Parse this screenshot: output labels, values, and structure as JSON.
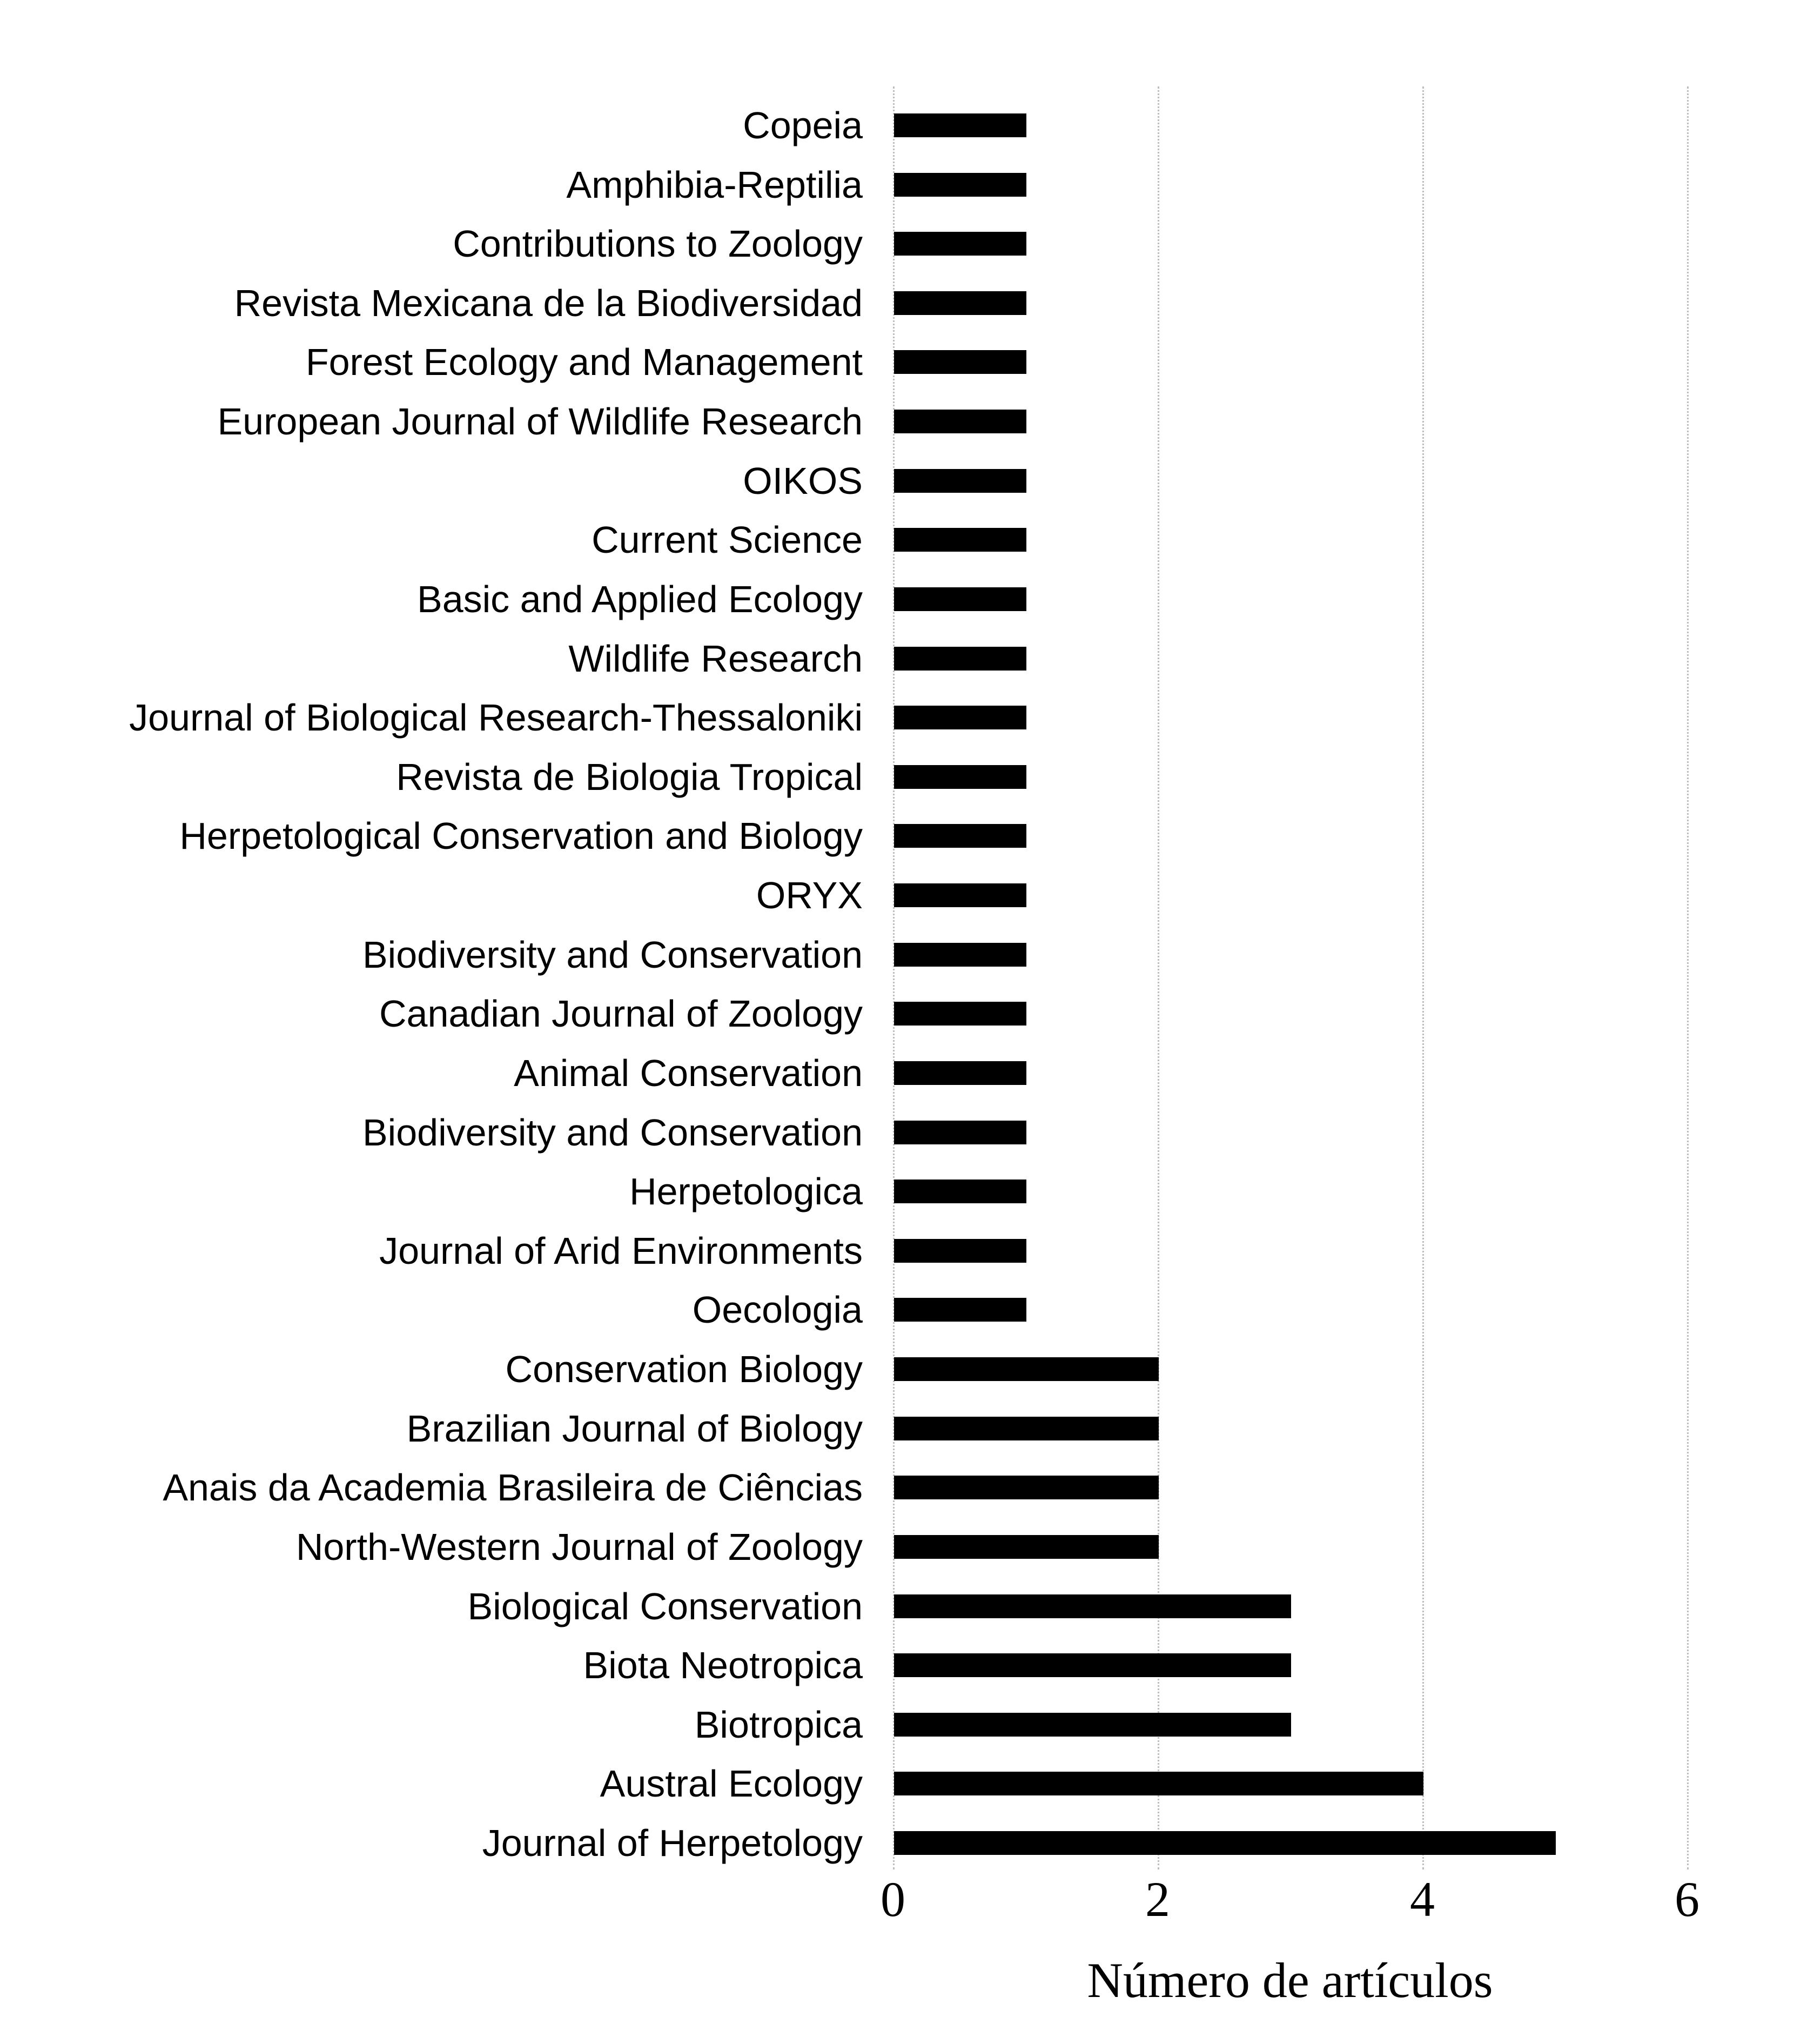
{
  "figure": {
    "background": "#ffffff"
  },
  "chart_data": {
    "type": "bar",
    "orientation": "horizontal",
    "title": "",
    "xlabel": "Número de artículos",
    "ylabel": "",
    "xlim": [
      0,
      6
    ],
    "xticks": [
      0,
      2,
      4,
      6
    ],
    "grid": "vertical-dotted",
    "gridline_color": "#bdbdbd",
    "bar_color": "#000000",
    "legend": "none",
    "categories": [
      "Copeia",
      "Amphibia-Reptilia",
      "Contributions to Zoology",
      "Revista Mexicana de la Biodiversidad",
      "Forest Ecology and Management",
      "European Journal of Wildlife Research",
      "OIKOS",
      "Current Science",
      "Basic and Applied Ecology",
      "Wildlife Research",
      "Journal of Biological Research-Thessaloniki",
      "Revista de Biologia Tropical",
      "Herpetological Conservation and Biology",
      "ORYX",
      "Biodiversity and Conservation",
      "Canadian Journal of Zoology",
      "Animal Conservation",
      "Biodiversity and Conservation",
      "Herpetologica",
      "Journal of Arid Environments",
      "Oecologia",
      "Conservation Biology",
      "Brazilian Journal of Biology",
      "Anais da Academia Brasileira de Ciências",
      "North-Western Journal of Zoology",
      "Biological Conservation",
      "Biota Neotropica",
      "Biotropica",
      "Austral Ecology",
      "Journal of Herpetology"
    ],
    "values": [
      1,
      1,
      1,
      1,
      1,
      1,
      1,
      1,
      1,
      1,
      1,
      1,
      1,
      1,
      1,
      1,
      1,
      1,
      1,
      1,
      1,
      2,
      2,
      2,
      2,
      3,
      3,
      3,
      4,
      5
    ]
  }
}
